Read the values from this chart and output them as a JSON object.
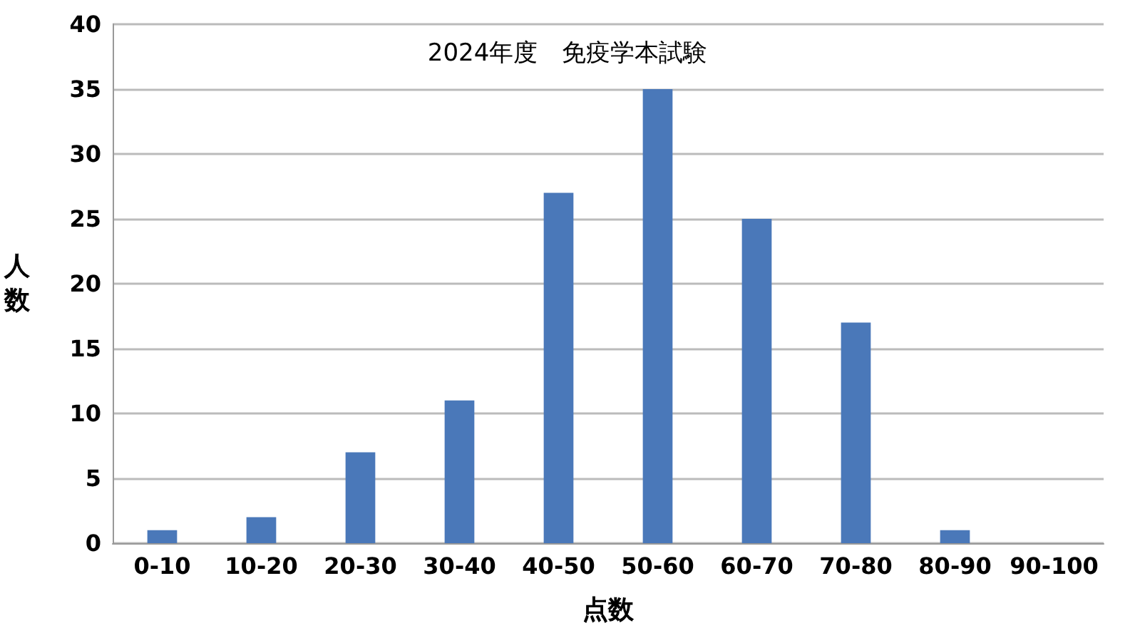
{
  "chart_data": {
    "type": "bar",
    "title": "2024年度　免疫学本試験",
    "xlabel": "点数",
    "ylabel": "人数",
    "categories": [
      "0-10",
      "10-20",
      "20-30",
      "30-40",
      "40-50",
      "50-60",
      "60-70",
      "70-80",
      "80-90",
      "90-100"
    ],
    "values": [
      1,
      2,
      7,
      11,
      27,
      35,
      25,
      17,
      1,
      0
    ],
    "color": "#4a78b9",
    "ylim": [
      0,
      40
    ],
    "yticks": [
      0,
      5,
      10,
      15,
      20,
      25,
      30,
      35,
      40
    ],
    "grid": "y"
  }
}
